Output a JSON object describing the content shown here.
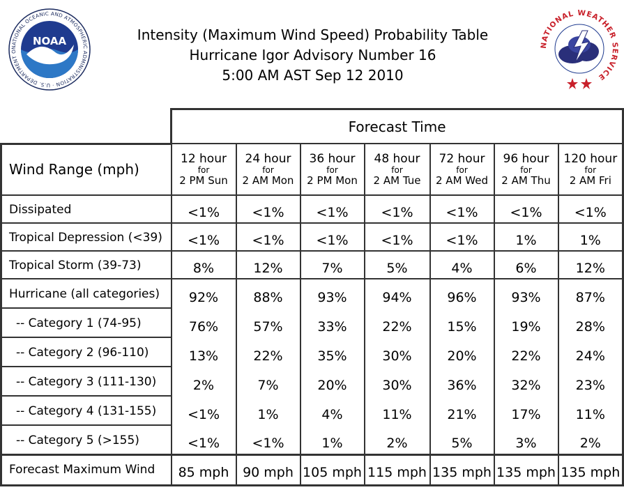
{
  "header": {
    "title_line1": "Intensity (Maximum Wind Speed) Probability Table",
    "title_line2": "Hurricane Igor Advisory Number 16",
    "title_line3": "5:00 AM AST Sep 12 2010",
    "noaa_logo_text": "NOAA",
    "noaa_ring_text": "NATIONAL OCEANIC AND ATMOSPHERIC ADMINISTRATION · U.S. DEPARTMENT OF COMMERCE",
    "nws_ring_text": "NATIONAL WEATHER SERVICE"
  },
  "chart_data": {
    "type": "table",
    "header_group": "Forecast Time",
    "row_header": "Wind Range (mph)",
    "columns": [
      {
        "hour": "12 hour",
        "for": "for",
        "when": "2 PM Sun"
      },
      {
        "hour": "24 hour",
        "for": "for",
        "when": "2 AM Mon"
      },
      {
        "hour": "36 hour",
        "for": "for",
        "when": "2 PM Mon"
      },
      {
        "hour": "48 hour",
        "for": "for",
        "when": "2 AM Tue"
      },
      {
        "hour": "72 hour",
        "for": "for",
        "when": "2 AM Wed"
      },
      {
        "hour": "96 hour",
        "for": "for",
        "when": "2 AM Thu"
      },
      {
        "hour": "120 hour",
        "for": "for",
        "when": "2 AM Fri"
      }
    ],
    "rows": [
      {
        "label": "Dissipated",
        "values": [
          "<1%",
          "<1%",
          "<1%",
          "<1%",
          "<1%",
          "<1%",
          "<1%"
        ]
      },
      {
        "label": "Tropical Depression (<39)",
        "values": [
          "<1%",
          "<1%",
          "<1%",
          "<1%",
          "<1%",
          "1%",
          "1%"
        ]
      },
      {
        "label": "Tropical Storm (39-73)",
        "values": [
          "8%",
          "12%",
          "7%",
          "5%",
          "4%",
          "6%",
          "12%"
        ]
      },
      {
        "label": "Hurricane (all categories)",
        "values": [
          "92%",
          "88%",
          "93%",
          "94%",
          "96%",
          "93%",
          "87%"
        ]
      },
      {
        "label": "-- Category 1 (74-95)",
        "values": [
          "76%",
          "57%",
          "33%",
          "22%",
          "15%",
          "19%",
          "28%"
        ]
      },
      {
        "label": "-- Category 2 (96-110)",
        "values": [
          "13%",
          "22%",
          "35%",
          "30%",
          "20%",
          "22%",
          "24%"
        ]
      },
      {
        "label": "-- Category 3 (111-130)",
        "values": [
          "2%",
          "7%",
          "20%",
          "30%",
          "36%",
          "32%",
          "23%"
        ]
      },
      {
        "label": "-- Category 4 (131-155)",
        "values": [
          "<1%",
          "1%",
          "4%",
          "11%",
          "21%",
          "17%",
          "11%"
        ]
      },
      {
        "label": "-- Category 5 (>155)",
        "values": [
          "<1%",
          "<1%",
          "1%",
          "2%",
          "5%",
          "3%",
          "2%"
        ]
      }
    ],
    "max_wind": {
      "label": "Forecast Maximum Wind",
      "values": [
        "85 mph",
        "90 mph",
        "105 mph",
        "115 mph",
        "135 mph",
        "135 mph",
        "135 mph"
      ]
    }
  }
}
